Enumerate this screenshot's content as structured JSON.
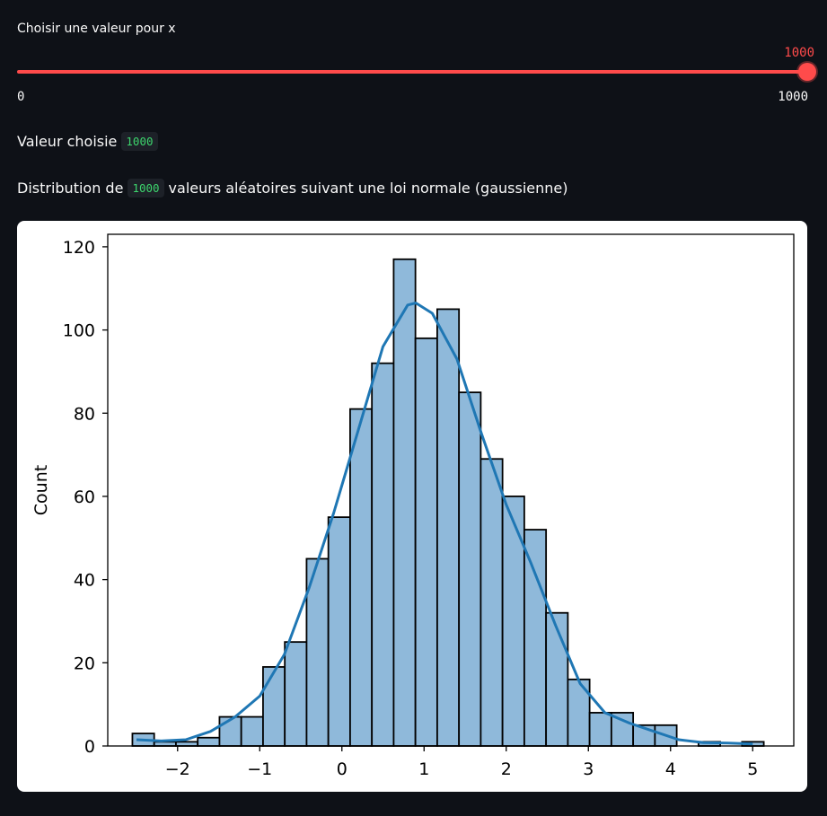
{
  "slider": {
    "label": "Choisir une valeur pour x",
    "value": "1000",
    "min_label": "0",
    "max_label": "1000",
    "fill_fraction": 1.0,
    "color": "#ff4b4b"
  },
  "output": {
    "chosen_prefix": "Valeur choisie",
    "chosen_value": "1000",
    "distribution_prefix": "Distribution de",
    "distribution_value": "1000",
    "distribution_suffix": "valeurs aléatoires suivant une loi normale (gaussienne)"
  },
  "chart_data": {
    "type": "bar",
    "subtype": "histogram-with-kde",
    "ylabel": "Count",
    "xlabel": "",
    "xlim": [
      -2.85,
      5.5
    ],
    "ylim": [
      0,
      123
    ],
    "xticks": [
      -2,
      -1,
      0,
      1,
      2,
      3,
      4,
      5
    ],
    "xtick_labels": [
      "−2",
      "−1",
      "0",
      "1",
      "2",
      "3",
      "4",
      "5"
    ],
    "yticks": [
      0,
      20,
      40,
      60,
      80,
      100,
      120
    ],
    "bin_start": -2.55,
    "bin_width": 0.265,
    "counts": [
      3,
      1,
      1,
      2,
      7,
      7,
      19,
      25,
      45,
      55,
      81,
      92,
      117,
      98,
      105,
      85,
      69,
      60,
      52,
      32,
      16,
      8,
      8,
      5,
      5,
      0,
      1,
      0,
      1
    ],
    "bar_color": "#8fb9da",
    "edge_color": "#000000",
    "kde_color": "#1f77b4",
    "kde": {
      "x": [
        -2.5,
        -2.2,
        -1.9,
        -1.6,
        -1.3,
        -1.0,
        -0.7,
        -0.4,
        -0.1,
        0.2,
        0.5,
        0.8,
        0.9,
        1.1,
        1.4,
        1.7,
        2.0,
        2.3,
        2.6,
        2.9,
        3.2,
        3.5,
        3.8,
        4.1,
        4.4,
        4.7,
        5.0
      ],
      "y": [
        1.5,
        1.2,
        1.5,
        3.5,
        7,
        12,
        22,
        38,
        56,
        76,
        96,
        106,
        106.5,
        104,
        93,
        75,
        58,
        44,
        29,
        15,
        8,
        5.5,
        3.5,
        1.5,
        0.8,
        0.7,
        0.5
      ]
    }
  }
}
